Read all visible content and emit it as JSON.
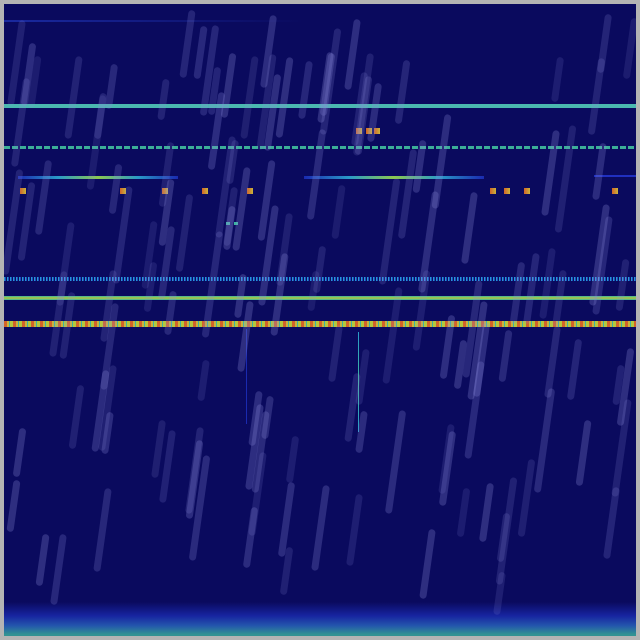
{
  "colors": {
    "background": "#0a0a5e",
    "frame": "#b4b4b4",
    "cyan_band": "#3cb4a0",
    "yellow_band": "#b4c83c",
    "hot_mark": "#d26428",
    "warm_mark": "#c8b43c",
    "rain_overlay": "#8c8cdc"
  }
}
